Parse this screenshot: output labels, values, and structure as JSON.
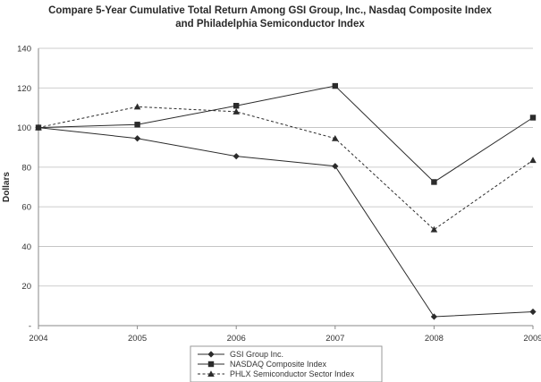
{
  "chart_data": {
    "type": "line",
    "title": "Compare 5-Year Cumulative Total Return Among GSI Group, Inc., Nasdaq Composite Index",
    "subtitle": "and Philadelphia Semiconductor Index",
    "xlabel": "",
    "ylabel": "Dollars",
    "x": [
      "2004",
      "2005",
      "2006",
      "2007",
      "2008",
      "2009"
    ],
    "y_ticks": [
      "-",
      "20",
      "40",
      "60",
      "80",
      "100",
      "120",
      "140"
    ],
    "ylim": [
      0,
      140
    ],
    "grid": true,
    "legend_position": "bottom",
    "series": [
      {
        "name": "GSI Group Inc.",
        "values": [
          100,
          94.5,
          85.5,
          80.5,
          4.5,
          7
        ],
        "marker": "diamond",
        "line_style": "solid",
        "color": "#2b2b2b"
      },
      {
        "name": "NASDAQ Composite Index",
        "values": [
          100,
          101.5,
          111,
          121,
          72.5,
          105
        ],
        "marker": "square",
        "line_style": "solid",
        "color": "#2b2b2b"
      },
      {
        "name": "PHLX Semiconductor Sector Index",
        "values": [
          100,
          110.5,
          108,
          94.5,
          48.5,
          83.5
        ],
        "marker": "triangle",
        "line_style": "dashed",
        "color": "#2b2b2b"
      }
    ],
    "colors": {
      "grid": "#bdbdbd",
      "axis": "#8a8a8a",
      "line": "#2b2b2b"
    }
  }
}
